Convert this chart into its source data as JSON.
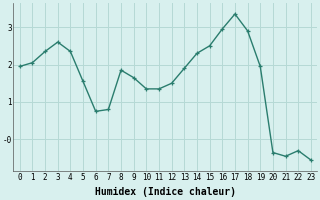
{
  "x": [
    0,
    1,
    2,
    3,
    4,
    5,
    6,
    7,
    8,
    9,
    10,
    11,
    12,
    13,
    14,
    15,
    16,
    17,
    18,
    19,
    20,
    21,
    22,
    23
  ],
  "y": [
    1.95,
    2.05,
    2.35,
    2.6,
    2.35,
    1.55,
    0.75,
    0.8,
    1.85,
    1.65,
    1.35,
    1.35,
    1.5,
    1.9,
    2.3,
    2.5,
    2.95,
    3.35,
    2.9,
    1.95,
    -0.35,
    -0.45,
    -0.3,
    -0.55
  ],
  "line_color": "#2a7d6e",
  "marker": "+",
  "markersize": 3.5,
  "linewidth": 1.0,
  "bg_color": "#d8f0ee",
  "grid_color": "#b5d9d5",
  "xlabel": "Humidex (Indice chaleur)",
  "xlabel_fontsize": 7,
  "xlabel_weight": "bold",
  "ylabel_ticks": [
    0,
    1,
    2,
    3
  ],
  "ytick_labels": [
    "-0",
    "1",
    "2",
    "3"
  ],
  "ylim": [
    -0.85,
    3.65
  ],
  "xlim": [
    -0.5,
    23.5
  ],
  "xtick_labels": [
    "0",
    "1",
    "2",
    "3",
    "4",
    "5",
    "6",
    "7",
    "8",
    "9",
    "10",
    "11",
    "12",
    "13",
    "14",
    "15",
    "16",
    "17",
    "18",
    "19",
    "20",
    "21",
    "22",
    "23"
  ],
  "tick_fontsize": 5.5
}
